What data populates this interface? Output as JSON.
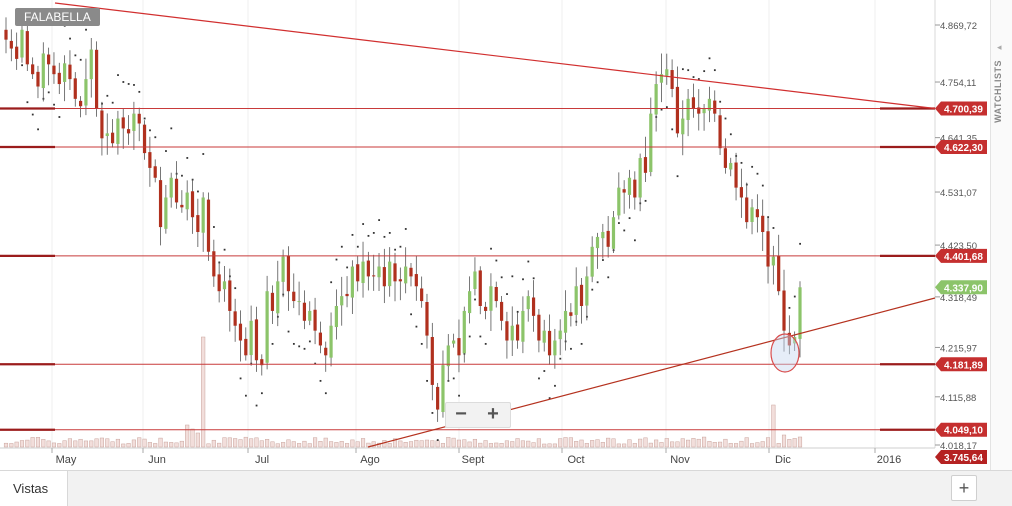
{
  "ticker": "FALABELLA",
  "sidebar": {
    "label": "WATCHLISTS"
  },
  "tabs": {
    "views_label": "Vistas",
    "add_label": "+"
  },
  "zoom": {
    "out_label": "−",
    "in_label": "+"
  },
  "colors": {
    "up": "#8cc46a",
    "down": "#b0301e",
    "level": "#c83a3a",
    "trend": "#d12f2f",
    "sar": "#333333",
    "volume": "#d9b5b0",
    "current": "#8cc46a",
    "circle": "#d94d4d"
  },
  "chart_data": {
    "type": "candlestick",
    "symbol": "FALABELLA",
    "x_months": [
      "May",
      "Jun",
      "Jul",
      "Ago",
      "Sept",
      "Oct",
      "Nov",
      "Dic",
      "2016"
    ],
    "y_ticks": [
      "4.869,72",
      "4.754,11",
      "4.641,35",
      "4.531,07",
      "4.423,50",
      "4.318,49",
      "4.215,97",
      "4.115,88",
      "4.018,17"
    ],
    "levels": [
      {
        "value": 4700.39,
        "label": "4.700,39"
      },
      {
        "value": 4622.3,
        "label": "4.622,30"
      },
      {
        "value": 4401.68,
        "label": "4.401,68"
      },
      {
        "value": 4181.89,
        "label": "4.181,89"
      },
      {
        "value": 4049.1,
        "label": "4.049,10"
      }
    ],
    "current": {
      "value": 4337.9,
      "label": "4.337,90"
    },
    "volume_badge": {
      "label": "3.745,64"
    },
    "trendlines": [
      {
        "name": "resistance",
        "from": [
          "2015-04-20",
          4980
        ],
        "to": [
          "2016-01-10",
          4700
        ]
      },
      {
        "name": "support",
        "from": [
          "2015-07-28",
          4018
        ],
        "to": [
          "2016-01-10",
          4320
        ]
      }
    ],
    "ohlc_close": [
      4840,
      4822,
      4801,
      4860,
      4790,
      4770,
      4745,
      4812,
      4790,
      4770,
      4750,
      4792,
      4760,
      4720,
      4705,
      4760,
      4820,
      4700,
      4640,
      4650,
      4630,
      4680,
      4660,
      4650,
      4690,
      4670,
      4610,
      4580,
      4560,
      4460,
      4520,
      4560,
      4510,
      4500,
      4530,
      4480,
      4450,
      4520,
      4410,
      4360,
      4330,
      4350,
      4290,
      4260,
      4230,
      4200,
      4270,
      4190,
      4180,
      4330,
      4290,
      4350,
      4400,
      4330,
      4310,
      4310,
      4270,
      4290,
      4250,
      4220,
      4200,
      4260,
      4300,
      4320,
      4320,
      4380,
      4350,
      4390,
      4360,
      4360,
      4380,
      4340,
      4390,
      4350,
      4350,
      4380,
      4360,
      4340,
      4310,
      4240,
      4140,
      4090,
      4180,
      4220,
      4230,
      4200,
      4290,
      4330,
      4370,
      4300,
      4290,
      4340,
      4310,
      4270,
      4230,
      4260,
      4230,
      4290,
      4320,
      4280,
      4230,
      4250,
      4200,
      4230,
      4250,
      4290,
      4280,
      4340,
      4300,
      4360,
      4420,
      4440,
      4450,
      4420,
      4480,
      4540,
      4530,
      4560,
      4520,
      4600,
      4570,
      4690,
      4750,
      4770,
      4780,
      4740,
      4650,
      4680,
      4720,
      4700,
      4690,
      4700,
      4720,
      4690,
      4620,
      4580,
      4590,
      4540,
      4520,
      4470,
      4500,
      4480,
      4450,
      4380,
      4400,
      4330,
      4250,
      4220,
      4237,
      4337.9
    ],
    "sar_note": "Parabolic SAR dots shown above/below price",
    "volume_spikes": [
      "Jun",
      "Nov"
    ]
  }
}
